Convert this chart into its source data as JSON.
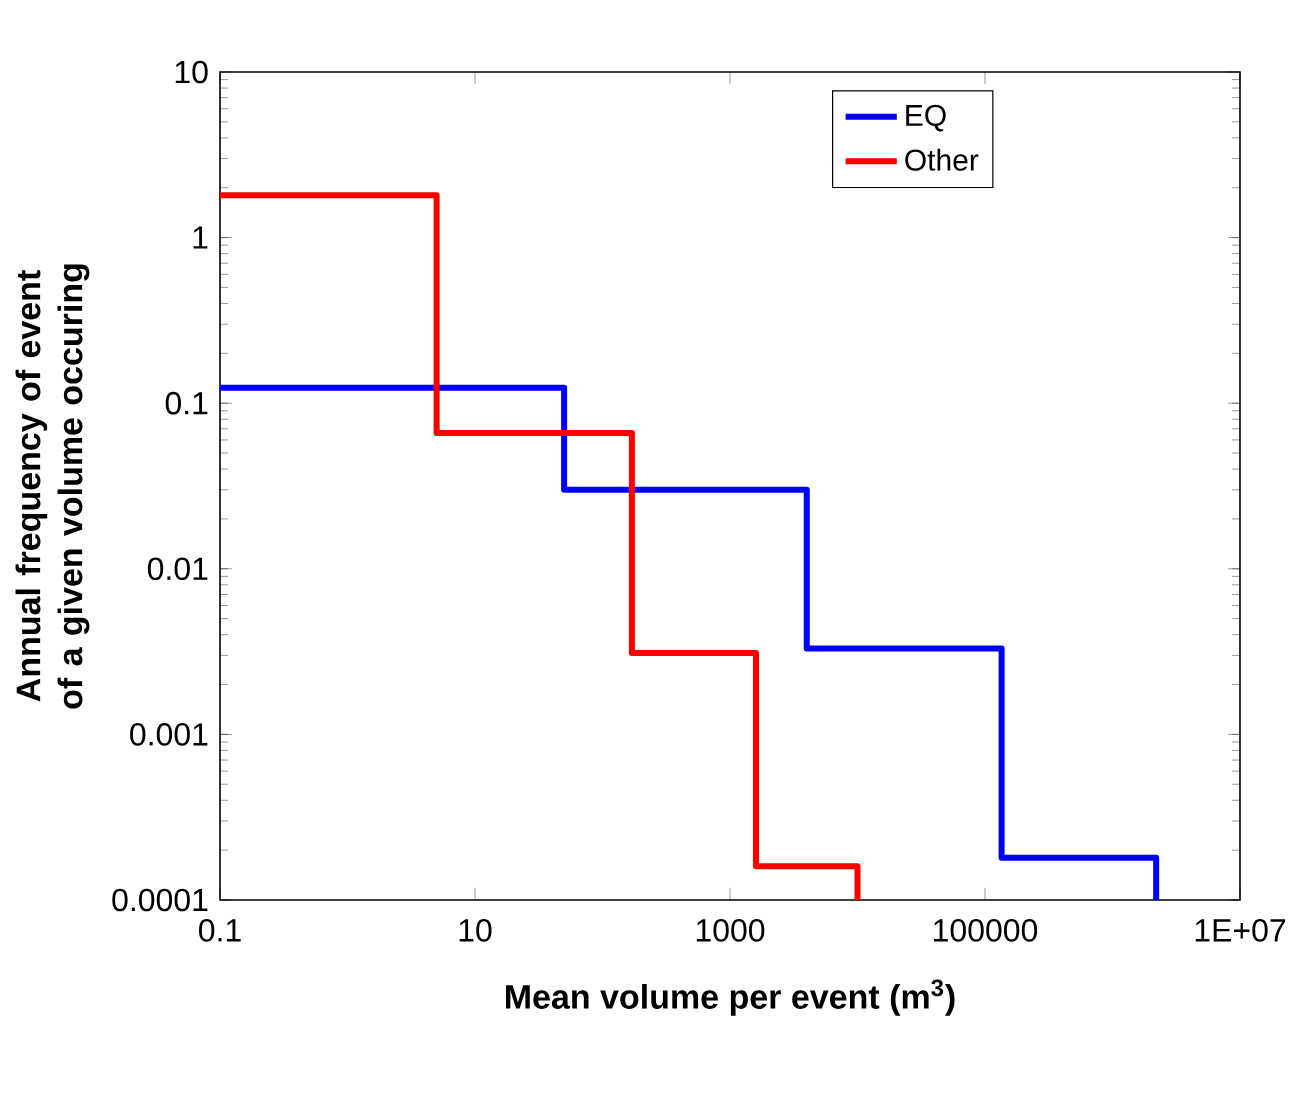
{
  "chart_data": {
    "type": "step",
    "xlabel": "Mean volume per event (m$^{3}$)",
    "ylabel": "Annual  frequency of event of a given volume occuring",
    "log": "xy",
    "xlim": [
      0.1,
      10000000
    ],
    "ylim": [
      0.0001,
      10
    ],
    "xticks": [
      0.1,
      10,
      1000,
      100000,
      {
        "value": 10000000,
        "label": "1E+07"
      }
    ],
    "yticks": [
      0.0001,
      0.001,
      0.01,
      0.1,
      1,
      10
    ],
    "legend": "top right",
    "grid": false,
    "series": [
      {
        "name": "EQ",
        "color": "#0000ff",
        "x": [
          0.1,
          50,
          4000,
          135000,
          2200000
        ],
        "values": [
          0.124,
          0.03,
          0.0033,
          0.00018,
          0.0001
        ]
      },
      {
        "name": "Other",
        "color": "#ff0000",
        "x": [
          0.1,
          5,
          170,
          1600,
          10000
        ],
        "values": [
          1.8,
          0.066,
          0.0031,
          0.00016,
          0.0001
        ]
      }
    ]
  }
}
